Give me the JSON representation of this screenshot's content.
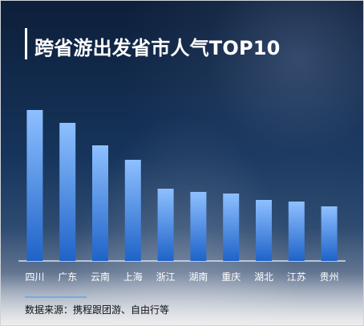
{
  "title": "跨省游出发省市人气TOP10",
  "source": "数据来源：携程跟团游、自由行等",
  "chart_data": {
    "type": "bar",
    "categories": [
      "四川",
      "广东",
      "云南",
      "上海",
      "浙江",
      "湖南",
      "重庆",
      "湖北",
      "江苏",
      "贵州"
    ],
    "values": [
      94,
      86,
      72,
      63,
      45,
      43,
      42,
      38,
      37,
      34
    ],
    "ylim": [
      0,
      100
    ],
    "grid": false,
    "legend": "none",
    "colors": {
      "bar_top": "#8ec0ff",
      "bar_bottom": "#1f63c8",
      "baseline": "#d7e2f2",
      "label": "#ffffff"
    }
  }
}
